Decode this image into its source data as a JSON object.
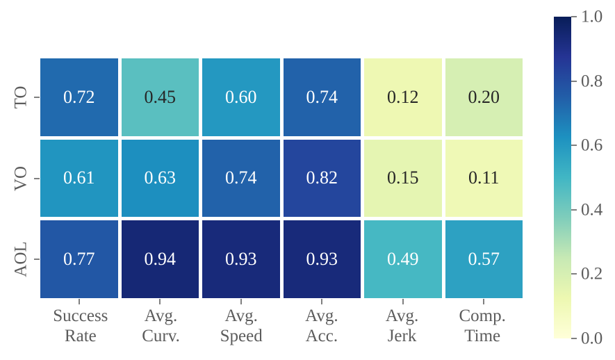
{
  "figure": {
    "background": "#ffffff",
    "axis_text_color": "#5c5c5c",
    "tick_mark_color": "#7f7f7f"
  },
  "chart_data": {
    "type": "heatmap",
    "title": "",
    "rows": [
      "TO",
      "VO",
      "AOL"
    ],
    "columns": [
      [
        "Success",
        "Rate"
      ],
      [
        "Avg.",
        "Curv."
      ],
      [
        "Avg.",
        "Speed"
      ],
      [
        "Avg.",
        "Acc."
      ],
      [
        "Avg.",
        "Jerk"
      ],
      [
        "Comp.",
        "Time"
      ]
    ],
    "values": [
      [
        0.72,
        0.45,
        0.6,
        0.74,
        0.12,
        0.2
      ],
      [
        0.61,
        0.63,
        0.74,
        0.82,
        0.15,
        0.11
      ],
      [
        0.77,
        0.94,
        0.93,
        0.93,
        0.49,
        0.57
      ]
    ],
    "value_decimals": 2,
    "vmin": 0.0,
    "vmax": 1.0,
    "grid": false,
    "colormap": {
      "name": "YlGnBu",
      "anchors": [
        {
          "pos": 0.0,
          "color": "#ffffd9"
        },
        {
          "pos": 0.125,
          "color": "#edf8b1"
        },
        {
          "pos": 0.25,
          "color": "#c7e9b4"
        },
        {
          "pos": 0.375,
          "color": "#7fcdbb"
        },
        {
          "pos": 0.5,
          "color": "#41b6c4"
        },
        {
          "pos": 0.625,
          "color": "#1d91c0"
        },
        {
          "pos": 0.75,
          "color": "#225ea8"
        },
        {
          "pos": 0.875,
          "color": "#253494"
        },
        {
          "pos": 1.0,
          "color": "#081d58"
        }
      ]
    },
    "colorbar": {
      "position": "right",
      "tick_labels": [
        "1.0",
        "0.8",
        "0.6",
        "0.4",
        "0.2",
        "0.0"
      ],
      "tick_values": [
        1.0,
        0.8,
        0.6,
        0.4,
        0.2,
        0.0
      ]
    },
    "annotation_colors": {
      "light": "#ffffff",
      "dark": "#262626"
    }
  }
}
